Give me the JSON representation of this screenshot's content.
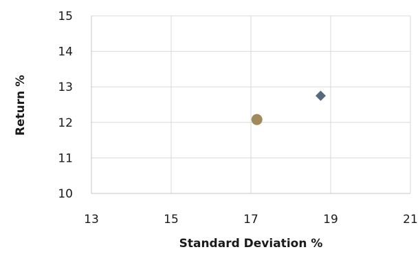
{
  "chart_data": {
    "type": "scatter",
    "title": "",
    "xlabel": "Standard Deviation %",
    "ylabel": "Return %",
    "xlim": [
      13,
      21
    ],
    "ylim": [
      10,
      15
    ],
    "xticks": [
      13,
      15,
      17,
      19,
      21
    ],
    "yticks": [
      10,
      11,
      12,
      13,
      14,
      15
    ],
    "xtick_labels": [
      "13",
      "15",
      "17",
      "19",
      "21"
    ],
    "ytick_labels": [
      "10",
      "11",
      "12",
      "13",
      "14",
      "15"
    ],
    "grid": true,
    "legend": "none",
    "series": [
      {
        "marker": "circle",
        "color": "#a08a5c",
        "points": [
          {
            "x": 17.15,
            "y": 12.08
          }
        ]
      },
      {
        "marker": "diamond",
        "color": "#566a7e",
        "points": [
          {
            "x": 18.75,
            "y": 12.75
          }
        ]
      }
    ]
  }
}
